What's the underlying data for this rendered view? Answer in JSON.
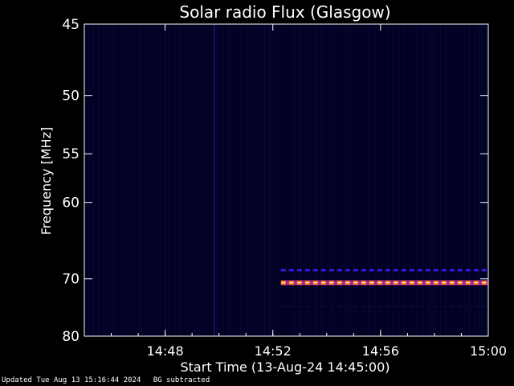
{
  "chart_data": {
    "type": "heatmap",
    "title": "Solar radio Flux (Glasgow)",
    "xlabel": "Start Time (13-Aug-24 14:45:00)",
    "ylabel": "Frequency [MHz]",
    "x_range_minutes": [
      0,
      15
    ],
    "x_ticks": [
      {
        "minute": 3,
        "label": "14:48"
      },
      {
        "minute": 7,
        "label": "14:52"
      },
      {
        "minute": 11,
        "label": "14:56"
      },
      {
        "minute": 15,
        "label": "15:00"
      }
    ],
    "y_range_mhz": [
      45,
      80
    ],
    "y_ticks": [
      {
        "mhz": 45,
        "label": "45"
      },
      {
        "mhz": 50,
        "label": "50"
      },
      {
        "mhz": 55,
        "label": "55"
      },
      {
        "mhz": 60,
        "label": "60"
      },
      {
        "mhz": 70,
        "label": "70"
      },
      {
        "mhz": 80,
        "label": "80"
      }
    ],
    "background_color": "#000020",
    "colors": {
      "low": "#0a0a3a",
      "mid": "#3a1ad8",
      "high": "#ff8a1a",
      "peak": "#ffffff"
    },
    "bands": [
      {
        "mhz": 68.7,
        "start_minute": 7.3,
        "end_minute": 15,
        "level": "mid"
      },
      {
        "mhz": 70.6,
        "start_minute": 7.3,
        "end_minute": 15,
        "level": "high"
      },
      {
        "mhz": 74.5,
        "start_minute": 7.3,
        "end_minute": 15,
        "level": "low"
      }
    ]
  },
  "footer": {
    "updated": "Updated Tue Aug 13 15:16:44 2024",
    "note": "BG subtracted"
  }
}
